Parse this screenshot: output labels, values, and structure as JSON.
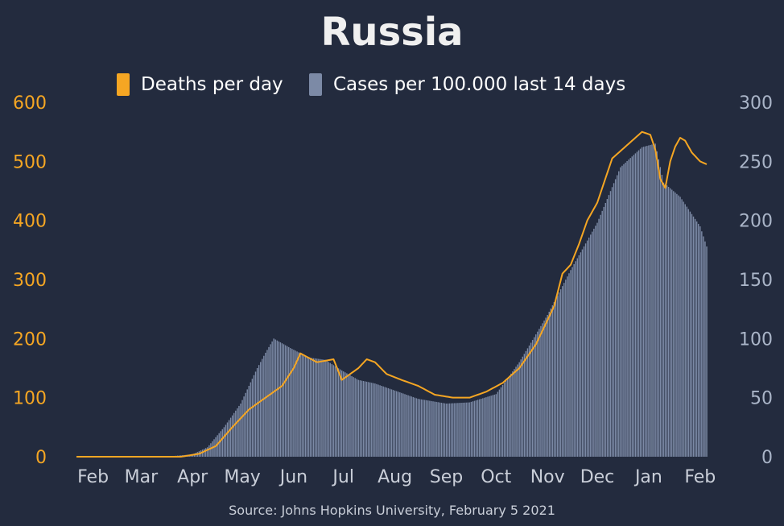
{
  "title": "Russia",
  "source": "Source: Johns Hopkins University, February 5 2021",
  "colors": {
    "background": "#232b3e",
    "deaths": "#f5a623",
    "cases": "#7c8aa6",
    "title": "#f0f0f0",
    "legend_text": "#ffffff",
    "left_axis": "#f5a623",
    "right_axis": "#aab5c8",
    "x_axis": "#c9ced8",
    "source": "#c9ced8"
  },
  "legend": [
    {
      "label": "Deaths per day",
      "color": "#f5a623",
      "icon": "orange-bar-swatch"
    },
    {
      "label": "Cases per 100.000 last 14 days",
      "color": "#7c8aa6",
      "icon": "blue-bar-swatch"
    }
  ],
  "chart_data": {
    "type": "bar",
    "title": "Russia",
    "x_tick_labels": [
      "Feb",
      "Mar",
      "Apr",
      "May",
      "Jun",
      "Jul",
      "Aug",
      "Sep",
      "Oct",
      "Nov",
      "Dec",
      "Jan",
      "Feb"
    ],
    "x_tick_dates": [
      "2020-02-01",
      "2020-03-01",
      "2020-04-01",
      "2020-05-01",
      "2020-06-01",
      "2020-07-01",
      "2020-08-01",
      "2020-09-01",
      "2020-10-01",
      "2020-11-01",
      "2020-12-01",
      "2021-01-01",
      "2021-02-01"
    ],
    "left_axis": {
      "ylim": [
        0,
        600
      ],
      "ticks": [
        0,
        100,
        200,
        300,
        400,
        500,
        600
      ]
    },
    "right_axis": {
      "ylim": [
        0,
        300
      ],
      "ticks": [
        0,
        50,
        100,
        150,
        200,
        250,
        300
      ]
    },
    "grid": false,
    "legend_position": "top-center",
    "series": [
      {
        "name": "Cases per 100.000 last 14 days",
        "type": "bar",
        "axis": "right",
        "x": [
          "2020-01-22",
          "2020-03-15",
          "2020-04-01",
          "2020-04-10",
          "2020-04-20",
          "2020-04-30",
          "2020-05-10",
          "2020-05-15",
          "2020-05-20",
          "2020-05-30",
          "2020-06-10",
          "2020-06-20",
          "2020-06-30",
          "2020-07-10",
          "2020-07-20",
          "2020-08-01",
          "2020-08-15",
          "2020-09-01",
          "2020-09-15",
          "2020-10-01",
          "2020-10-15",
          "2020-11-01",
          "2020-11-15",
          "2020-12-01",
          "2020-12-15",
          "2020-12-28",
          "2021-01-05",
          "2021-01-10",
          "2021-01-20",
          "2021-02-01",
          "2021-02-05"
        ],
        "values": [
          0,
          0,
          2,
          8,
          25,
          45,
          75,
          88,
          100,
          92,
          84,
          82,
          73,
          65,
          62,
          56,
          49,
          45,
          46,
          53,
          80,
          120,
          158,
          198,
          245,
          262,
          265,
          232,
          220,
          195,
          178
        ]
      },
      {
        "name": "Deaths per day",
        "type": "line",
        "axis": "left",
        "x": [
          "2020-01-22",
          "2020-03-25",
          "2020-04-05",
          "2020-04-15",
          "2020-04-25",
          "2020-05-05",
          "2020-05-15",
          "2020-05-25",
          "2020-06-01",
          "2020-06-05",
          "2020-06-15",
          "2020-06-25",
          "2020-06-30",
          "2020-07-10",
          "2020-07-15",
          "2020-07-20",
          "2020-07-27",
          "2020-08-05",
          "2020-08-15",
          "2020-08-25",
          "2020-09-05",
          "2020-09-15",
          "2020-09-25",
          "2020-10-05",
          "2020-10-15",
          "2020-10-25",
          "2020-11-05",
          "2020-11-10",
          "2020-11-15",
          "2020-11-20",
          "2020-11-25",
          "2020-12-01",
          "2020-12-10",
          "2020-12-20",
          "2020-12-28",
          "2021-01-02",
          "2021-01-05",
          "2021-01-08",
          "2021-01-11",
          "2021-01-14",
          "2021-01-17",
          "2021-01-20",
          "2021-01-23",
          "2021-01-27",
          "2021-02-01",
          "2021-02-05"
        ],
        "values": [
          0,
          0,
          5,
          18,
          50,
          80,
          100,
          120,
          150,
          175,
          160,
          165,
          130,
          150,
          165,
          160,
          140,
          130,
          120,
          105,
          100,
          100,
          110,
          125,
          150,
          190,
          255,
          310,
          325,
          360,
          400,
          430,
          505,
          530,
          550,
          545,
          520,
          470,
          455,
          500,
          525,
          540,
          535,
          515,
          500,
          495
        ]
      }
    ]
  }
}
